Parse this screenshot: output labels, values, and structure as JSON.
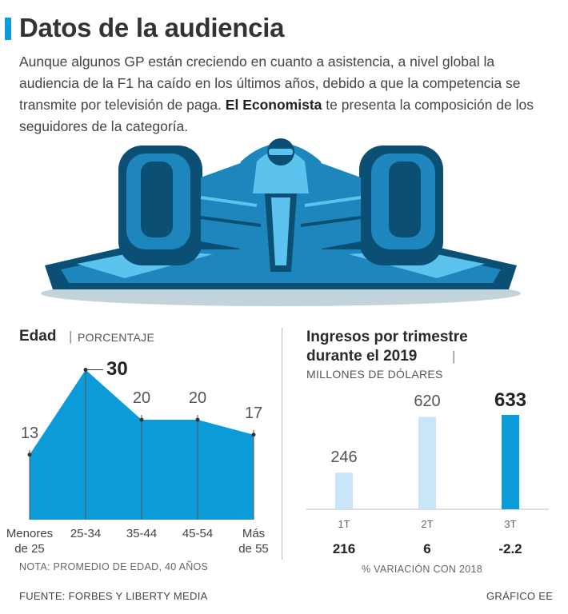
{
  "header": {
    "title": "Datos de la audiencia",
    "intro_part1": "Aunque algunos GP están creciendo en cuanto a asistencia, a nivel global la audiencia de la F1 ha caído en los últimos años, debido a que la competencia se transmite por televisión de paga. ",
    "intro_bold": "El Economista",
    "intro_part2": " te presenta la composición de los seguidores de la categoría."
  },
  "colors": {
    "accent": "#0a9bd8",
    "bar_light": "#c8e6f8",
    "car_dark": "#0b4f75",
    "car_mid": "#1c86bd",
    "car_light": "#5cc2ee"
  },
  "icons": {
    "illustration": "f1-car-icon"
  },
  "age_panel": {
    "title": "Edad",
    "separator": "|",
    "subtitle": "PORCENTAJE",
    "note": "NOTA: PROMEDIO DE EDAD, 40 AÑOS"
  },
  "revenue_panel": {
    "title_line1": "Ingresos por trimestre",
    "title_line2": "durante el 2019",
    "separator": "|",
    "subtitle": "MILLONES DE DÓLARES",
    "variation_caption": "% VARIACIÓN CON 2018"
  },
  "chart_data": [
    {
      "type": "area",
      "title": "Edad",
      "ylabel": "PORCENTAJE",
      "categories": [
        [
          "Menores",
          "de 25"
        ],
        [
          "25-34"
        ],
        [
          "35-44"
        ],
        [
          "45-54"
        ],
        [
          "Más",
          "de 55"
        ]
      ],
      "values": [
        13,
        30,
        20,
        20,
        17
      ],
      "value_labels": [
        "13",
        "30",
        "20",
        "20",
        "17"
      ],
      "highlight_index": 1,
      "ylim": [
        0,
        32
      ],
      "grid": false
    },
    {
      "type": "bar",
      "title": "Ingresos por trimestre durante el 2019",
      "ylabel": "MILLONES DE DÓLARES",
      "categories": [
        "1T",
        "2T",
        "3T"
      ],
      "values": [
        246,
        620,
        633
      ],
      "value_labels": [
        "246",
        "620",
        "633"
      ],
      "highlight_index": 2,
      "variation_pct": [
        "216",
        "6",
        "-2.2"
      ],
      "variation_caption": "% VARIACIÓN CON 2018",
      "ylim": [
        0,
        700
      ],
      "grid": false
    }
  ],
  "footer": {
    "source": "FUENTE: FORBES Y LIBERTY MEDIA",
    "credit": "GRÁFICO EE"
  }
}
